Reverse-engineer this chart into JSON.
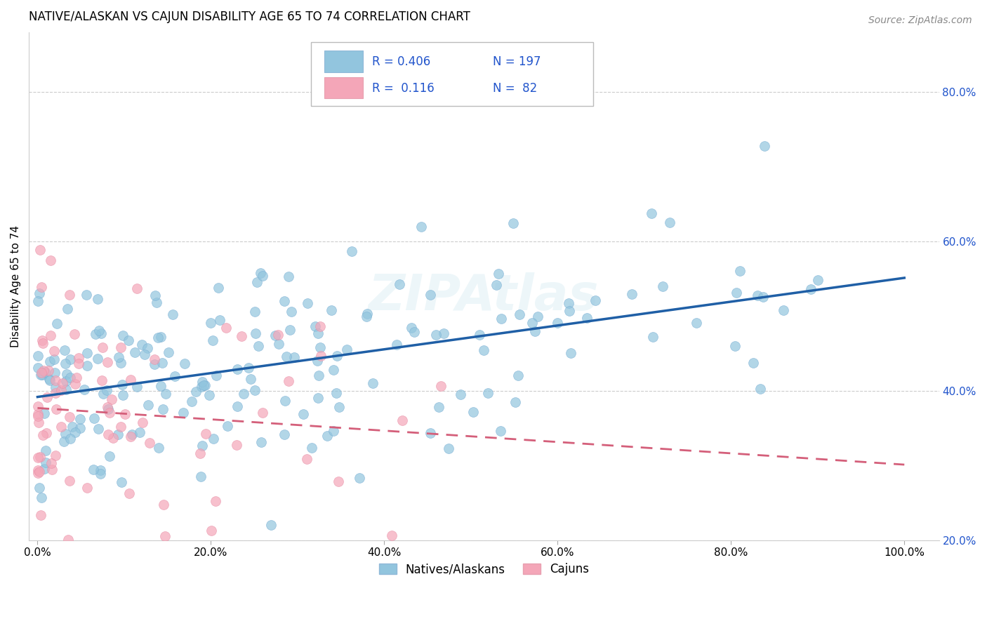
{
  "title": "NATIVE/ALASKAN VS CAJUN DISABILITY AGE 65 TO 74 CORRELATION CHART",
  "source": "Source: ZipAtlas.com",
  "ylabel": "Disability Age 65 to 74",
  "blue_color": "#92c5de",
  "pink_color": "#f4a6b8",
  "blue_line_color": "#1f5fa6",
  "pink_line_color": "#d45f7a",
  "tick_color": "#2255cc",
  "grid_color": "#cccccc",
  "background": "#ffffff",
  "blue_r": 0.406,
  "blue_n": 197,
  "pink_r": 0.116,
  "pink_n": 82,
  "xlim": [
    -0.01,
    1.04
  ],
  "ylim": [
    0.27,
    0.88
  ],
  "xticks": [
    0.0,
    0.2,
    0.4,
    0.6,
    0.8,
    1.0
  ],
  "yticks": [
    0.2,
    0.4,
    0.6,
    0.8
  ],
  "watermark": "ZIPAtlas",
  "watermark_color": "#add8e6"
}
